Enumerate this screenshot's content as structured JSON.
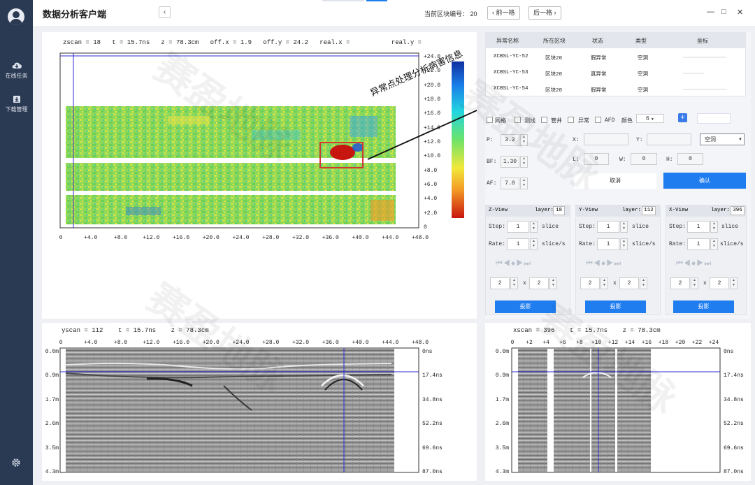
{
  "sidebar": {
    "items": [
      {
        "label": "在线任务",
        "icon": "cloud-icon"
      },
      {
        "label": "下载管理",
        "icon": "download-icon"
      }
    ]
  },
  "header": {
    "title": "数据分析客户端",
    "block_label": "当前区块编号：",
    "block_no": "20",
    "prev_label": "前一格",
    "next_label": "后一格"
  },
  "zview": {
    "readout": "zscan = 18   t = 15.7ns   z = 78.3cm   off.x = 1.9   off.y = 24.2   real.x =           real.y =",
    "x_ticks": [
      "0",
      "+4.0",
      "+8.0",
      "+12.0",
      "+16.0",
      "+20.0",
      "+24.0",
      "+28.0",
      "+32.0",
      "+36.0",
      "+40.0",
      "+44.0",
      "+48.0"
    ],
    "y_ticks": [
      "+24.0",
      "+22.0",
      "+20.0",
      "+18.0",
      "+16.0",
      "+14.0",
      "+12.0",
      "+10.0",
      "+8.0",
      "+6.0",
      "+4.0",
      "+2.0",
      "0"
    ]
  },
  "annotation": "异常点处理分析病害信息",
  "yview": {
    "readout": "yscan = 112    t = 15.7ns    z = 78.3cm",
    "x_ticks": [
      "0",
      "+4.0",
      "+8.0",
      "+12.0",
      "+16.0",
      "+20.0",
      "+24.0",
      "+28.0",
      "+32.0",
      "+36.0",
      "+40.0",
      "+44.0",
      "+48.0"
    ],
    "depth_ticks": [
      "0.0m",
      "0.9m",
      "1.7m",
      "2.6m",
      "3.5m",
      "4.3m"
    ],
    "time_ticks": [
      "0ns",
      "17.4ns",
      "34.8ns",
      "52.2ns",
      "69.6ns",
      "87.0ns"
    ]
  },
  "xview": {
    "readout": "xscan = 396    t = 15.7ns    z = 78.3cm",
    "x_ticks": [
      "0",
      "+2",
      "+4",
      "+6",
      "+8",
      "+10",
      "+12",
      "+14",
      "+16",
      "+18",
      "+20",
      "+22",
      "+24"
    ],
    "depth_ticks": [
      "0.0m",
      "0.9m",
      "1.7m",
      "2.6m",
      "3.5m",
      "4.3m"
    ],
    "time_ticks": [
      "0ns",
      "17.4ns",
      "34.8ns",
      "52.2ns",
      "69.6ns",
      "87.0ns"
    ]
  },
  "table": {
    "columns": [
      "异常名称",
      "所在区块",
      "状态",
      "类型",
      "坐标"
    ],
    "rows": [
      {
        "name": "XCBSL-YC-52",
        "block": "区块20",
        "status": "假异常",
        "type": "空洞"
      },
      {
        "name": "XCBSL-YC-53",
        "block": "区块20",
        "status": "真异常",
        "type": "空洞"
      },
      {
        "name": "XCBSL-YC-54",
        "block": "区块20",
        "status": "假异常",
        "type": "空洞"
      }
    ]
  },
  "controls": {
    "checks": [
      "网格",
      "测线",
      "管井",
      "异常",
      "AFD"
    ],
    "color_label": "颜色",
    "color_value": "6",
    "p_label": "P:",
    "p_value": "3.2",
    "bf_label": "BF:",
    "bf_value": "1.30",
    "af_label": "AF:",
    "af_value": "7.0",
    "x_label": "X:",
    "y_label": "Y:",
    "l_label": "L:",
    "l_value": "0",
    "w_label": "W:",
    "w_value": "0",
    "h_label": "H:",
    "h_value": "0",
    "type_select": "空洞",
    "cancel": "取消",
    "confirm": "确认"
  },
  "views": [
    {
      "title": "Z-View",
      "layer_label": "layer:",
      "layer": "18",
      "step_label": "Step:",
      "step": "1",
      "step_unit": "slice",
      "rate_label": "Rate:",
      "rate": "1",
      "rate_unit": "slice/s",
      "a": "2",
      "times": "x",
      "b": "2",
      "project": "投影"
    },
    {
      "title": "Y-View",
      "layer_label": "layer:",
      "layer": "112",
      "step_label": "Step:",
      "step": "1",
      "step_unit": "slice",
      "rate_label": "Rate:",
      "rate": "1",
      "rate_unit": "slice/s",
      "a": "2",
      "times": "x",
      "b": "2",
      "project": "投影"
    },
    {
      "title": "X-View",
      "layer_label": "layer:",
      "layer": "396",
      "step_label": "Step:",
      "step": "1",
      "step_unit": "slice",
      "rate_label": "Rate:",
      "rate": "1",
      "rate_unit": "slice/s",
      "a": "2",
      "times": "x",
      "b": "2",
      "project": "投影"
    }
  ],
  "watermark": "赛盈地脉",
  "colors": {
    "accent": "#1f7df0",
    "sidebar": "#2a3a52",
    "crosshair": "#2b2bd6",
    "marker": "#d33a2c"
  }
}
